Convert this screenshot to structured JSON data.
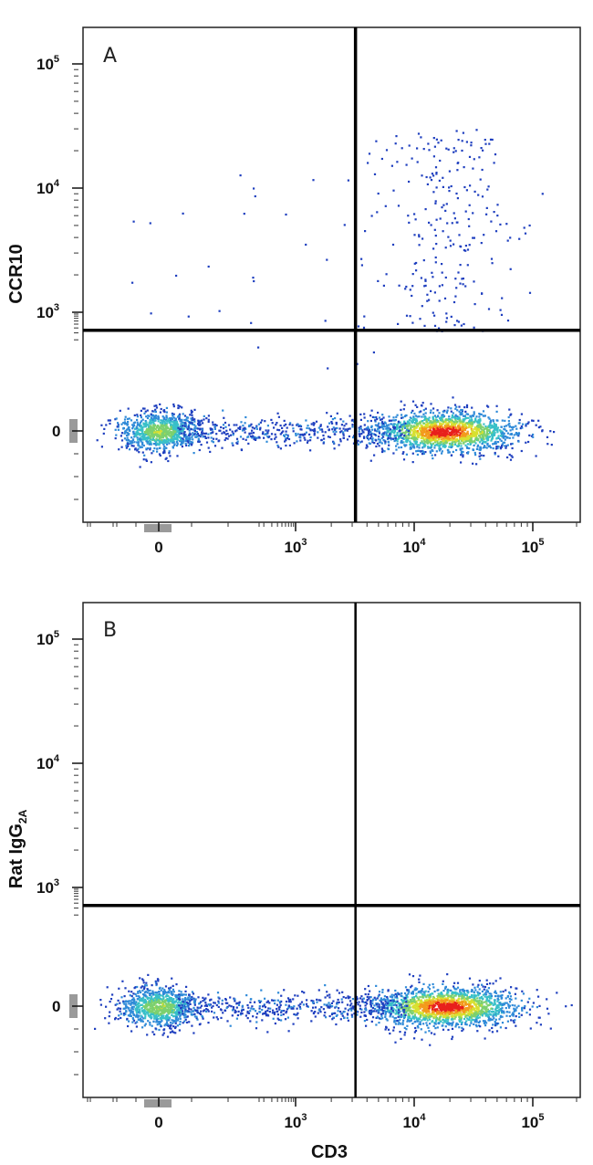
{
  "chart_data": [
    {
      "type": "scatter",
      "panel_label": "A",
      "xlabel": "",
      "ylabel": "CCR10",
      "x_scale": "biexponential",
      "y_scale": "biexponential",
      "x_ticks": [
        {
          "value": 0,
          "base": "0",
          "exp": ""
        },
        {
          "value": 1000,
          "base": "10",
          "exp": "3"
        },
        {
          "value": 10000,
          "base": "10",
          "exp": "4"
        },
        {
          "value": 100000,
          "base": "10",
          "exp": "5"
        }
      ],
      "y_ticks": [
        {
          "value": 0,
          "base": "0",
          "exp": ""
        },
        {
          "value": 1000,
          "base": "10",
          "exp": "3"
        },
        {
          "value": 10000,
          "base": "10",
          "exp": "4"
        },
        {
          "value": 100000,
          "base": "10",
          "exp": "5"
        }
      ],
      "gates": {
        "x": 3200,
        "y": 350
      },
      "populations": [
        {
          "name": "cd3-negative",
          "x_center": 0,
          "y_center": 0,
          "relative_density": 0.55
        },
        {
          "name": "cd3-positive",
          "x_center": 18000,
          "y_center": 0,
          "relative_density": 1.0
        },
        {
          "name": "cd3-positive-ccr10-positive",
          "x_center": 18000,
          "y_range": [
            350,
            30000
          ],
          "relative_density": 0.08
        }
      ],
      "colormap": [
        "#1f3fbf",
        "#2f8ad8",
        "#39c0c8",
        "#7cd06e",
        "#d8e030",
        "#f39a1c",
        "#e8201c"
      ],
      "grid": false,
      "legend": "none"
    },
    {
      "type": "scatter",
      "panel_label": "B",
      "xlabel": "CD3",
      "ylabel": "Rat IgG",
      "ylabel_sub": "2A",
      "x_scale": "biexponential",
      "y_scale": "biexponential",
      "x_ticks": [
        {
          "value": 0,
          "base": "0",
          "exp": ""
        },
        {
          "value": 1000,
          "base": "10",
          "exp": "3"
        },
        {
          "value": 10000,
          "base": "10",
          "exp": "4"
        },
        {
          "value": 100000,
          "base": "10",
          "exp": "5"
        }
      ],
      "y_ticks": [
        {
          "value": 0,
          "base": "0",
          "exp": ""
        },
        {
          "value": 1000,
          "base": "10",
          "exp": "3"
        },
        {
          "value": 10000,
          "base": "10",
          "exp": "4"
        },
        {
          "value": 100000,
          "base": "10",
          "exp": "5"
        }
      ],
      "gates": {
        "x": 3200,
        "y": 350
      },
      "populations": [
        {
          "name": "cd3-negative",
          "x_center": 0,
          "y_center": 0,
          "relative_density": 0.55
        },
        {
          "name": "cd3-positive",
          "x_center": 18000,
          "y_center": 0,
          "relative_density": 1.0
        }
      ],
      "colormap": [
        "#1f3fbf",
        "#2f8ad8",
        "#39c0c8",
        "#7cd06e",
        "#d8e030",
        "#f39a1c",
        "#e8201c"
      ],
      "grid": false,
      "legend": "none"
    }
  ]
}
